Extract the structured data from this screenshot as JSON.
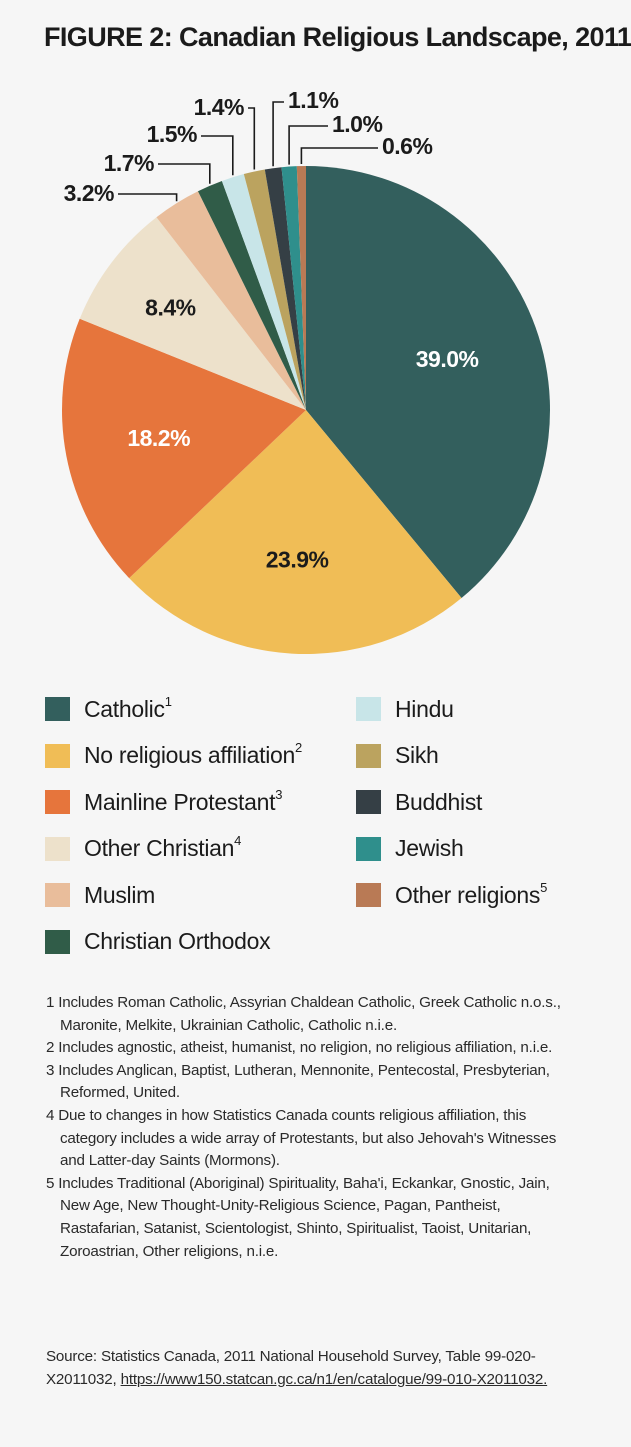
{
  "title": "FIGURE 2: Canadian Religious Landscape, 2011",
  "chart_data": {
    "type": "pie",
    "title": "FIGURE 2: Canadian Religious Landscape, 2011",
    "slices": [
      {
        "label": "Catholic",
        "sup": "1",
        "value": 39.0,
        "display": "39.0%",
        "color": "#335f5d",
        "text_color": "#ffffff"
      },
      {
        "label": "No religious affiliation",
        "sup": "2",
        "value": 23.9,
        "display": "23.9%",
        "color": "#f0bd56",
        "text_color": "#1b1b1b"
      },
      {
        "label": "Mainline Protestant",
        "sup": "3",
        "value": 18.2,
        "display": "18.2%",
        "color": "#e6753c",
        "text_color": "#ffffff"
      },
      {
        "label": "Other Christian",
        "sup": "4",
        "value": 8.4,
        "display": "8.4%",
        "color": "#ede1cb",
        "text_color": "#1b1b1b"
      },
      {
        "label": "Muslim",
        "sup": "",
        "value": 3.2,
        "display": "3.2%",
        "color": "#e9bd9b",
        "text_color": "#1b1b1b"
      },
      {
        "label": "Christian Orthodox",
        "sup": "",
        "value": 1.7,
        "display": "1.7%",
        "color": "#305c48",
        "text_color": "#1b1b1b"
      },
      {
        "label": "Hindu",
        "sup": "",
        "value": 1.5,
        "display": "1.5%",
        "color": "#c8e5e8",
        "text_color": "#1b1b1b"
      },
      {
        "label": "Sikh",
        "sup": "",
        "value": 1.4,
        "display": "1.4%",
        "color": "#bba35f",
        "text_color": "#1b1b1b"
      },
      {
        "label": "Buddhist",
        "sup": "",
        "value": 1.1,
        "display": "1.1%",
        "color": "#353f45",
        "text_color": "#1b1b1b"
      },
      {
        "label": "Jewish",
        "sup": "",
        "value": 1.0,
        "display": "1.0%",
        "color": "#2f8f8c",
        "text_color": "#1b1b1b"
      },
      {
        "label": "Other religions",
        "sup": "5",
        "value": 0.6,
        "display": "0.6%",
        "color": "#b97a55",
        "text_color": "#1b1b1b"
      }
    ],
    "legend": "bottom, two columns"
  },
  "footnotes": [
    "1 Includes Roman Catholic, Assyrian Chaldean Catholic, Greek Catholic n.o.s., Maronite, Melkite, Ukrainian Catholic, Catholic n.i.e.",
    "2 Includes agnostic, atheist, humanist, no religion, no religious affiliation, n.i.e.",
    "3 Includes Anglican, Baptist, Lutheran, Mennonite, Pentecostal, Presbyterian, Reformed, United.",
    "4 Due to changes in how Statistics Canada counts religious affiliation, this category includes a wide array of Protestants, but also Jehovah's Witnesses and Latter-day Saints (Mormons).",
    "5 Includes Traditional (Aboriginal) Spirituality, Baha'i, Eckankar, Gnostic, Jain, New Age, New Thought-Unity-Religious Science, Pagan, Pantheist, Rastafarian, Satanist, Scientologist, Shinto, Spiritualist, Taoist, Unitarian, Zoroastrian, Other religions, n.i.e."
  ],
  "source": {
    "text": "Source: Statistics Canada, 2011 National Household Survey, Table 99-020-X2011032, ",
    "link": "https://www150.statcan.gc.ca/n1/en/catalogue/99-010-X2011032."
  }
}
